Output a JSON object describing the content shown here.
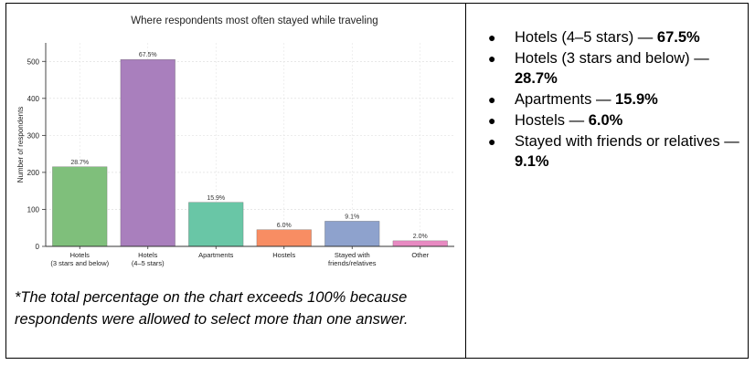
{
  "chart_data": {
    "type": "bar",
    "title": "Where respondents most often stayed while traveling",
    "xlabel": "",
    "ylabel": "Number of respondents",
    "ylim": [
      0,
      550
    ],
    "yticks": [
      0,
      100,
      200,
      300,
      400,
      500
    ],
    "grid": true,
    "categories": [
      [
        "Hotels",
        "(3 stars and below)"
      ],
      [
        "Hotels",
        "(4–5 stars)"
      ],
      [
        "Apartments"
      ],
      [
        "Hostels"
      ],
      [
        "Stayed with",
        "friends/relatives"
      ],
      [
        "Other"
      ]
    ],
    "values": [
      215,
      505,
      119,
      45,
      68,
      15
    ],
    "data_labels": [
      "28.7%",
      "67.5%",
      "15.9%",
      "6.0%",
      "9.1%",
      "2.0%"
    ],
    "colors": [
      "#7fbf7b",
      "#a97fbd",
      "#69c6a6",
      "#f88d63",
      "#8ea2cd",
      "#e88ac2"
    ]
  },
  "footnote": "*The total percentage on the chart exceeds 100% because respondents were allowed to select more than one answer.",
  "bullets": [
    {
      "label": "Hotels (4–5 stars) — ",
      "value": "67.5%"
    },
    {
      "label": "Hotels (3 stars and below) — ",
      "value": "28.7%"
    },
    {
      "label": "Apartments — ",
      "value": "15.9%"
    },
    {
      "label": "Hostels — ",
      "value": "6.0%"
    },
    {
      "label": "Stayed with friends or relatives — ",
      "value": "9.1%"
    }
  ]
}
